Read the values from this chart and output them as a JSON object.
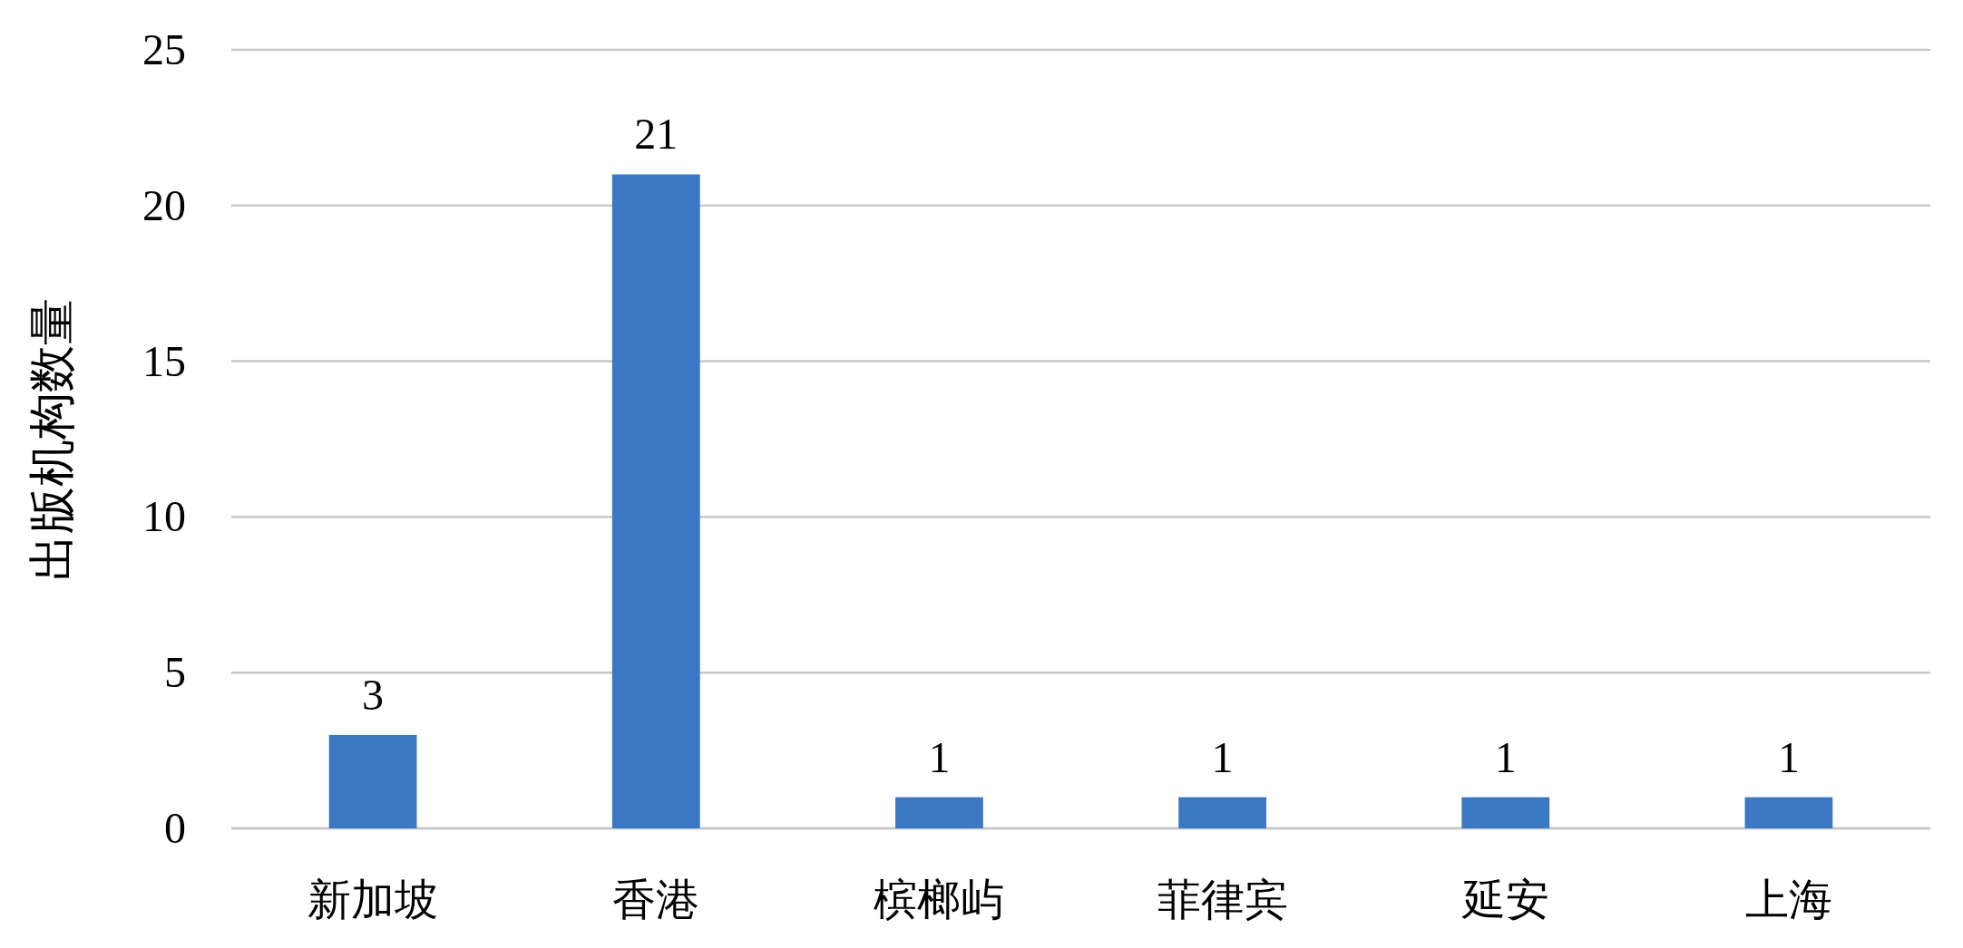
{
  "chart_data": {
    "type": "bar",
    "ylabel": "出版机构数量",
    "categories": [
      "新加坡",
      "香港",
      "槟榔屿",
      "菲律宾",
      "延安",
      "上海"
    ],
    "values": [
      3,
      21,
      1,
      1,
      1,
      1
    ],
    "color": "#3a78c4",
    "ylim": [
      0,
      25
    ],
    "yticks": [
      0,
      5,
      10,
      15,
      20,
      25
    ],
    "grid": "y",
    "data_labels": true
  }
}
